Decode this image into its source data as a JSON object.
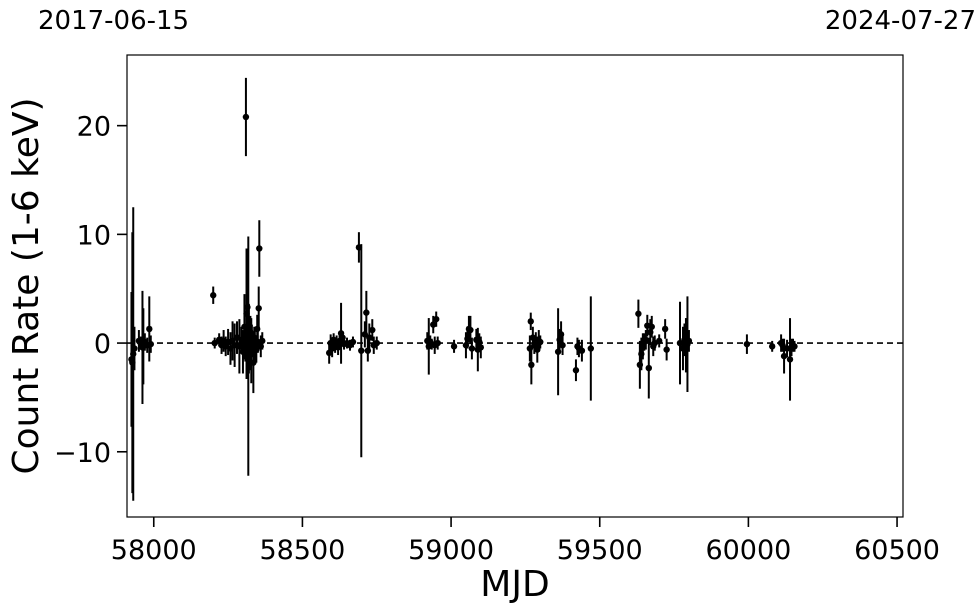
{
  "chart_data": {
    "type": "scatter",
    "title": "",
    "xlabel": "MJD",
    "ylabel": "Count Rate (1-6 keV)",
    "xlim": [
      57910,
      60520
    ],
    "ylim": [
      -16,
      26.5
    ],
    "xticks": [
      58000,
      58500,
      59000,
      59500,
      60000,
      60500
    ],
    "xtick_labels": [
      "58000",
      "58500",
      "59000",
      "59500",
      "60000",
      "60500"
    ],
    "yticks": [
      -10,
      0,
      10,
      20
    ],
    "ytick_labels": [
      "−10",
      "0",
      "10",
      "20"
    ],
    "top_left_date": "2017-06-15",
    "top_right_date": "2024-07-27",
    "reference_line": {
      "y": 0,
      "style": "dashed"
    },
    "grid": false,
    "legend": "none",
    "marker_color": "#000000",
    "series": [
      {
        "points": [
          [
            57925,
            -1.5,
            6.2
          ],
          [
            57928,
            -1.8,
            12.0
          ],
          [
            57931,
            -1.0,
            13.5
          ],
          [
            57935,
            -0.5,
            2.0
          ],
          [
            57950,
            0.2,
            1.0
          ],
          [
            57956,
            0.0,
            0.6
          ],
          [
            57962,
            -0.4,
            5.2
          ],
          [
            57965,
            -0.3,
            3.5
          ],
          [
            57970,
            0.1,
            0.8
          ],
          [
            57978,
            -0.2,
            0.7
          ],
          [
            57985,
            1.3,
            3.0
          ],
          [
            57990,
            -0.1,
            0.8
          ],
          [
            58200,
            4.4,
            0.8
          ],
          [
            58205,
            0.0,
            0.5
          ],
          [
            58220,
            0.3,
            0.6
          ],
          [
            58228,
            -0.2,
            0.8
          ],
          [
            58235,
            0.2,
            1.0
          ],
          [
            58242,
            -0.3,
            0.9
          ],
          [
            58250,
            0.1,
            1.2
          ],
          [
            58258,
            -0.5,
            1.5
          ],
          [
            58265,
            0.2,
            1.8
          ],
          [
            58272,
            -0.2,
            2.0
          ],
          [
            58280,
            0.5,
            1.5
          ],
          [
            58288,
            -0.3,
            2.5
          ],
          [
            58295,
            0.3,
            1.2
          ],
          [
            58300,
            -0.8,
            2.0
          ],
          [
            58305,
            1.5,
            3.0
          ],
          [
            58308,
            -0.2,
            1.5
          ],
          [
            58310,
            20.8,
            3.6
          ],
          [
            58312,
            2.7,
            6.0
          ],
          [
            58315,
            3.3,
            2.0
          ],
          [
            58318,
            -1.2,
            11.0
          ],
          [
            58320,
            0.4,
            3.2
          ],
          [
            58322,
            -0.5,
            2.0
          ],
          [
            58325,
            1.0,
            1.5
          ],
          [
            58328,
            -0.7,
            3.0
          ],
          [
            58330,
            0.2,
            1.5
          ],
          [
            58335,
            -1.8,
            2.8
          ],
          [
            58338,
            0.5,
            1.0
          ],
          [
            58340,
            -0.3,
            1.5
          ],
          [
            58345,
            -0.6,
            1.2
          ],
          [
            58348,
            1.3,
            1.3
          ],
          [
            58350,
            0.1,
            1.0
          ],
          [
            58353,
            3.2,
            2.0
          ],
          [
            58355,
            8.7,
            2.6
          ],
          [
            58360,
            -0.3,
            1.0
          ],
          [
            58365,
            0.2,
            0.8
          ],
          [
            58590,
            -0.9,
            1.0
          ],
          [
            58595,
            0.0,
            0.8
          ],
          [
            58600,
            -0.5,
            0.8
          ],
          [
            58605,
            0.3,
            0.6
          ],
          [
            58610,
            -0.2,
            0.7
          ],
          [
            58615,
            0.1,
            0.6
          ],
          [
            58620,
            -0.4,
            0.7
          ],
          [
            58625,
            0.2,
            0.6
          ],
          [
            58630,
            0.9,
            2.8
          ],
          [
            58635,
            0.5,
            0.6
          ],
          [
            58640,
            -0.1,
            0.5
          ],
          [
            58650,
            0.0,
            0.5
          ],
          [
            58660,
            -0.2,
            0.5
          ],
          [
            58670,
            0.1,
            0.5
          ],
          [
            58690,
            8.8,
            1.4
          ],
          [
            58698,
            -0.7,
            9.8
          ],
          [
            58710,
            0.8,
            1.2
          ],
          [
            58715,
            2.8,
            2.0
          ],
          [
            58720,
            -0.7,
            1.0
          ],
          [
            58725,
            0.5,
            1.3
          ],
          [
            58735,
            1.2,
            1.0
          ],
          [
            58740,
            -0.2,
            0.8
          ],
          [
            58750,
            0.0,
            0.6
          ],
          [
            58920,
            0.2,
            0.8
          ],
          [
            58925,
            -0.3,
            2.6
          ],
          [
            58930,
            0.1,
            0.6
          ],
          [
            58935,
            -0.1,
            0.5
          ],
          [
            58940,
            1.7,
            0.8
          ],
          [
            58945,
            -0.2,
            0.8
          ],
          [
            58950,
            2.2,
            0.7
          ],
          [
            58955,
            0.0,
            0.6
          ],
          [
            59010,
            -0.3,
            0.6
          ],
          [
            59050,
            -0.2,
            1.2
          ],
          [
            59055,
            0.4,
            0.9
          ],
          [
            59060,
            1.3,
            1.2
          ],
          [
            59065,
            1.2,
            1.3
          ],
          [
            59070,
            -0.5,
            1.0
          ],
          [
            59085,
            0.3,
            1.0
          ],
          [
            59090,
            -0.6,
            2.0
          ],
          [
            59095,
            0.1,
            0.8
          ],
          [
            59100,
            -0.4,
            1.0
          ],
          [
            59265,
            -0.5,
            1.2
          ],
          [
            59268,
            2.0,
            0.8
          ],
          [
            59270,
            -2.0,
            1.8
          ],
          [
            59275,
            0.5,
            1.0
          ],
          [
            59280,
            -0.2,
            0.8
          ],
          [
            59285,
            0.3,
            0.7
          ],
          [
            59290,
            -0.6,
            1.2
          ],
          [
            59295,
            0.2,
            1.0
          ],
          [
            59300,
            0.1,
            0.6
          ],
          [
            59360,
            -0.8,
            4.0
          ],
          [
            59365,
            0.3,
            1.0
          ],
          [
            59370,
            0.8,
            1.2
          ],
          [
            59375,
            -0.2,
            0.9
          ],
          [
            59420,
            -2.5,
            1.0
          ],
          [
            59425,
            -0.3,
            0.8
          ],
          [
            59430,
            -0.5,
            0.8
          ],
          [
            59440,
            -0.7,
            1.0
          ],
          [
            59470,
            -0.5,
            4.8
          ],
          [
            59630,
            2.7,
            1.3
          ],
          [
            59635,
            -2.0,
            2.2
          ],
          [
            59640,
            -1.0,
            1.5
          ],
          [
            59645,
            -0.3,
            1.2
          ],
          [
            59650,
            0.1,
            0.8
          ],
          [
            59655,
            0.3,
            0.9
          ],
          [
            59660,
            1.6,
            1.0
          ],
          [
            59665,
            -2.3,
            2.8
          ],
          [
            59670,
            1.0,
            1.2
          ],
          [
            59675,
            1.5,
            1.0
          ],
          [
            59680,
            -0.3,
            0.9
          ],
          [
            59685,
            0.0,
            0.7
          ],
          [
            59700,
            0.2,
            0.6
          ],
          [
            59720,
            1.3,
            0.9
          ],
          [
            59725,
            -0.6,
            1.0
          ],
          [
            59770,
            0.0,
            3.8
          ],
          [
            59780,
            -0.5,
            2.0
          ],
          [
            59785,
            0.3,
            1.5
          ],
          [
            59790,
            -0.2,
            2.5
          ],
          [
            59795,
            -0.1,
            4.4
          ],
          [
            59800,
            0.2,
            1.0
          ],
          [
            59995,
            -0.1,
            0.9
          ],
          [
            60080,
            -0.3,
            0.5
          ],
          [
            60110,
            0.0,
            0.8
          ],
          [
            60115,
            -0.2,
            0.6
          ],
          [
            60120,
            -1.2,
            1.6
          ],
          [
            60130,
            -0.5,
            0.8
          ],
          [
            60140,
            -1.5,
            3.8
          ],
          [
            60145,
            -0.4,
            0.8
          ],
          [
            60150,
            -0.2,
            0.6
          ],
          [
            60155,
            -0.3,
            0.5
          ]
        ]
      }
    ]
  }
}
